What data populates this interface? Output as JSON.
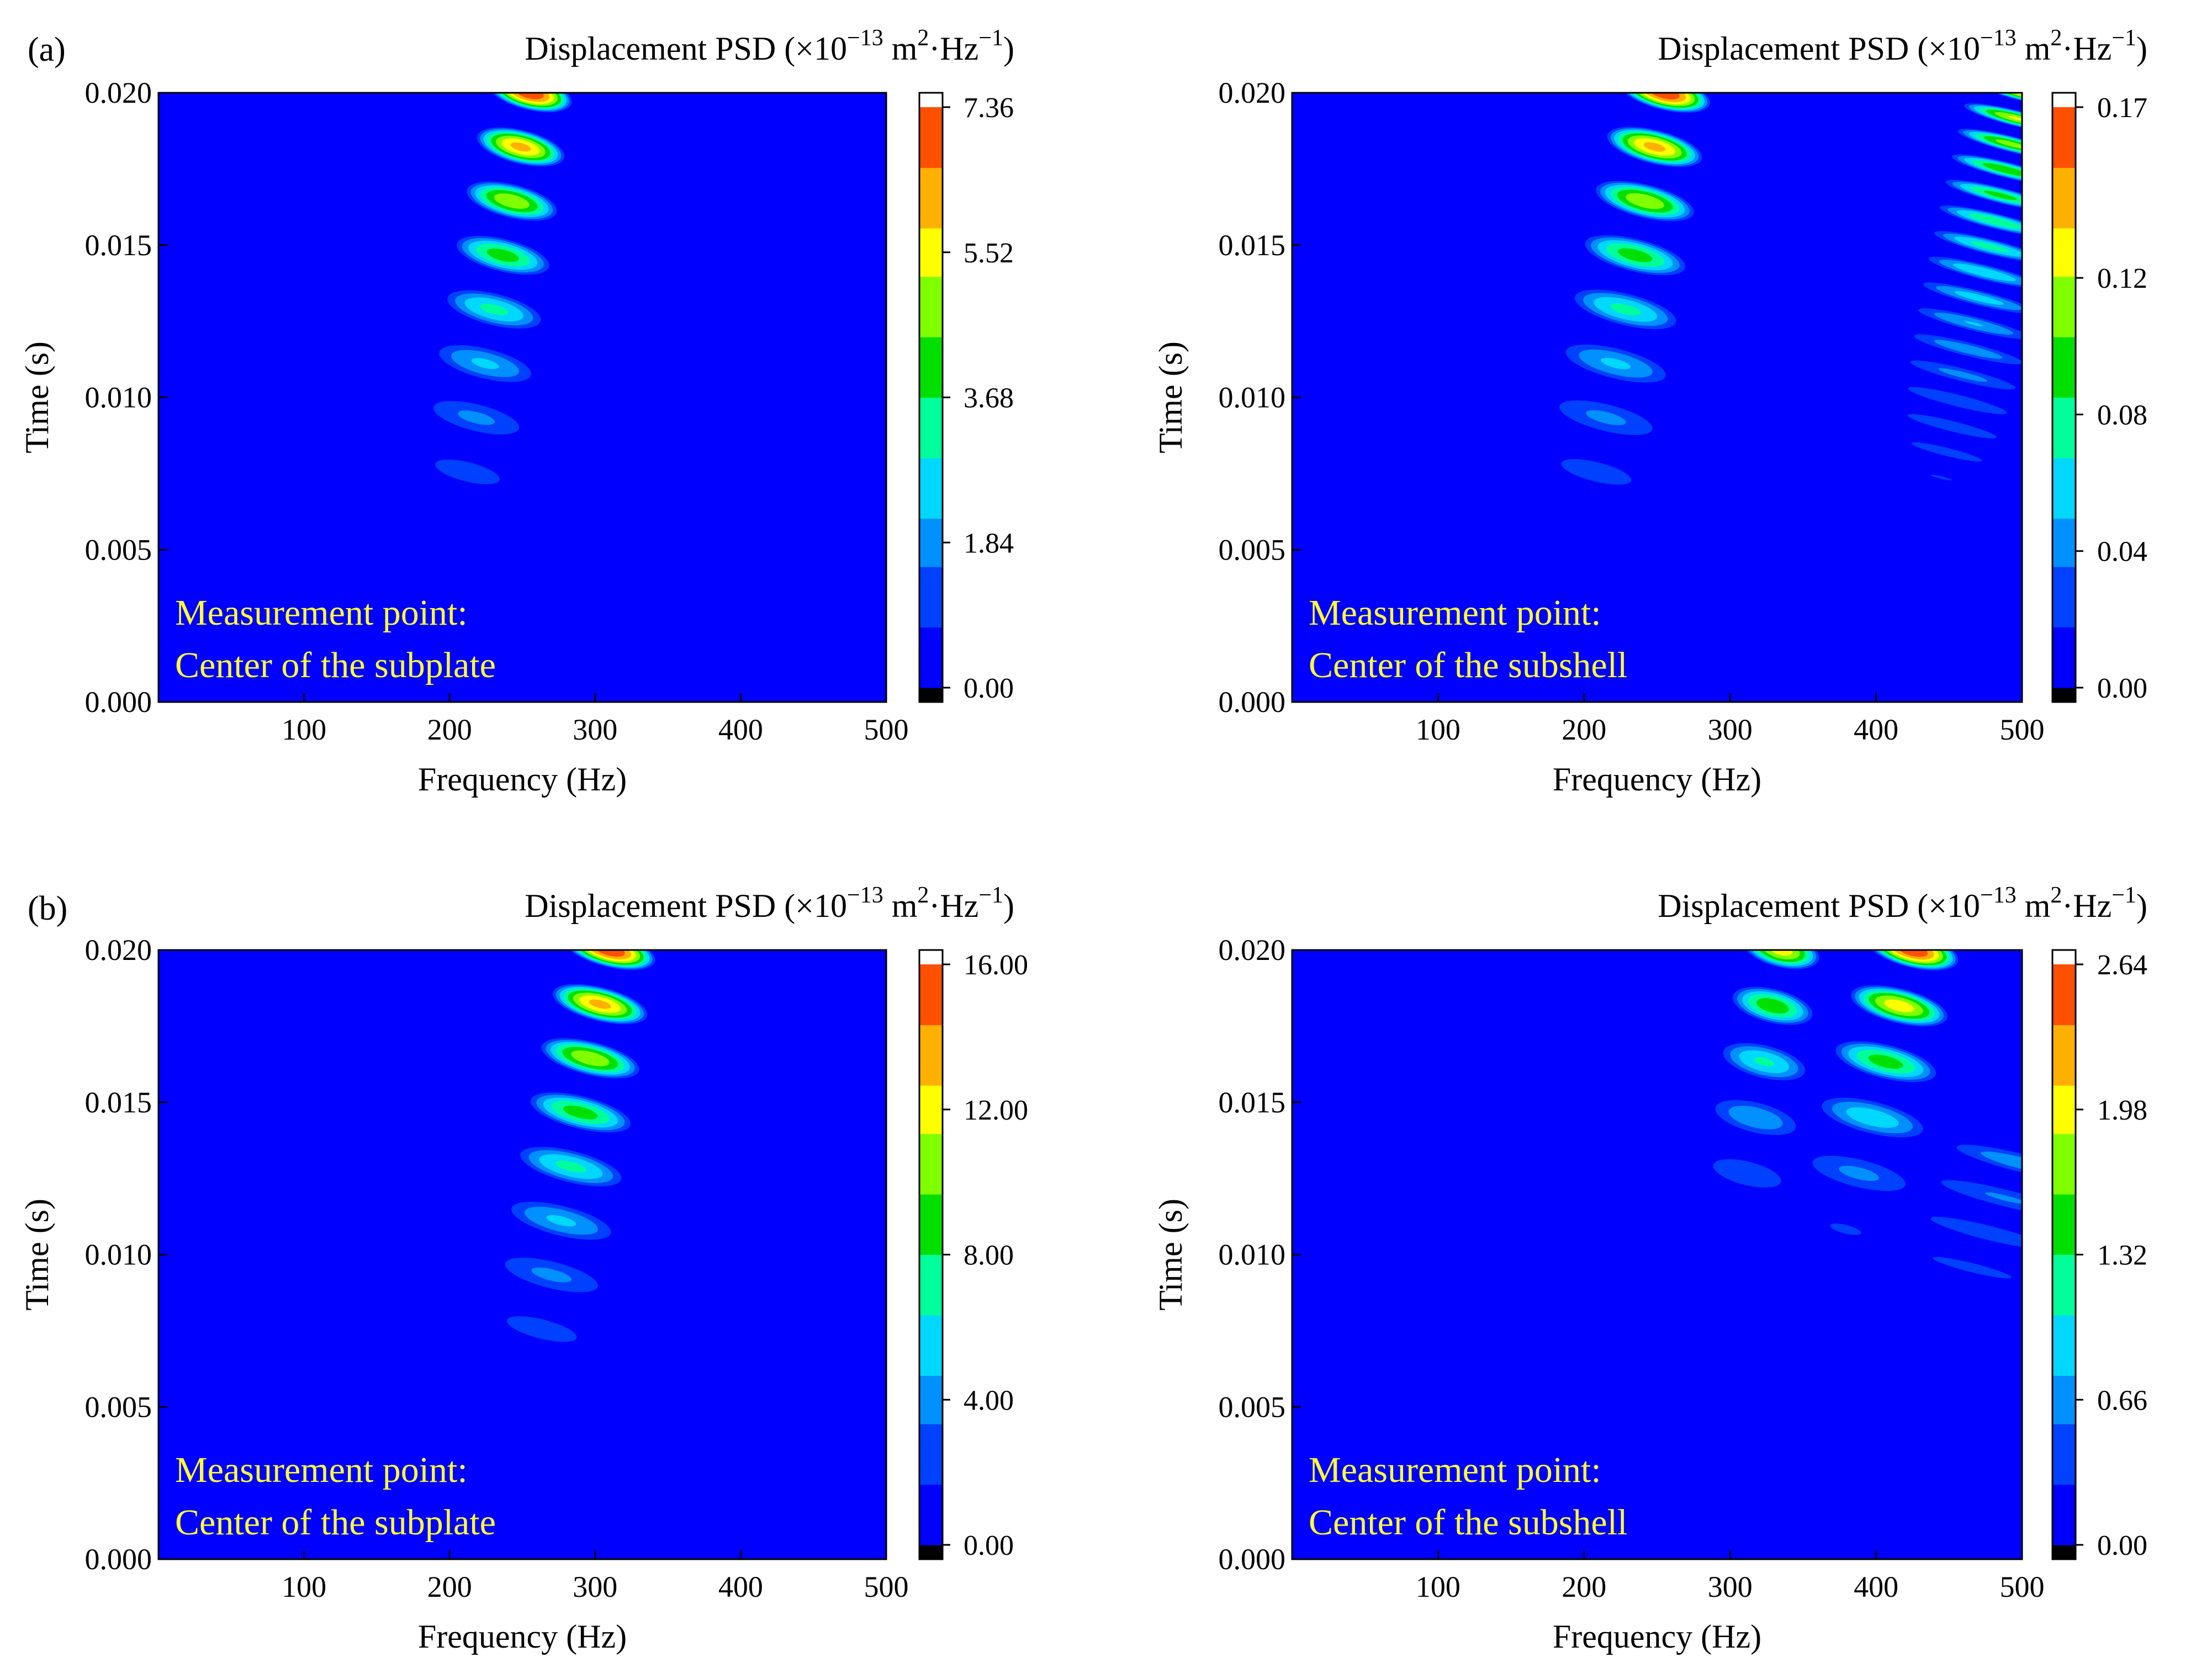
{
  "figure": {
    "panel_labels": [
      "(a)",
      "(b)"
    ],
    "colormap": [
      "#000080",
      "#0000ff",
      "#0040ff",
      "#0090ff",
      "#00d8ff",
      "#00ff9a",
      "#00e000",
      "#80ff00",
      "#ffff00",
      "#ffb000",
      "#ff5000",
      "#ff0000"
    ],
    "background_field_color": "#0000ff"
  },
  "chart_data": [
    {
      "type": "heatmap",
      "panel": "(a)",
      "title": "Displacement PSD",
      "colorbar_unit": "(×10",
      "colorbar_exp": "−13",
      "colorbar_unit2": " m",
      "colorbar_unit3": "·Hz",
      "colorbar_exp2": "−1",
      "colorbar_close": ")",
      "xlabel": "Frequency (Hz)",
      "ylabel": "Time (s)",
      "xlim": [
        0,
        500
      ],
      "ylim": [
        0,
        0.02
      ],
      "x_ticks": [
        "100",
        "200",
        "300",
        "400",
        "500"
      ],
      "y_ticks": [
        "0.000",
        "0.005",
        "0.010",
        "0.015",
        "0.020"
      ],
      "colorbar_ticks": [
        "0.00",
        "1.84",
        "3.68",
        "5.52",
        "7.36"
      ],
      "colorbar_range": [
        0,
        7.36
      ],
      "annotation_line1": "Measurement point:",
      "annotation_line2": "Center of the subplate",
      "ridges": [
        {
          "f0": 200,
          "f1": 255,
          "t0": 0.004,
          "t1": 0.02,
          "fringes": 10,
          "sigma_f": 24,
          "peak": 7.36
        }
      ]
    },
    {
      "type": "heatmap",
      "panel": "(a)",
      "title": "Displacement PSD",
      "colorbar_unit": "(×10",
      "colorbar_exp": "−13",
      "colorbar_unit2": " m",
      "colorbar_unit3": "·Hz",
      "colorbar_exp2": "−1",
      "colorbar_close": ")",
      "xlabel": "Frequency (Hz)",
      "ylabel": "Time (s)",
      "xlim": [
        0,
        500
      ],
      "ylim": [
        0,
        0.02
      ],
      "x_ticks": [
        "100",
        "200",
        "300",
        "400",
        "500"
      ],
      "y_ticks": [
        "0.000",
        "0.005",
        "0.010",
        "0.015",
        "0.020"
      ],
      "colorbar_ticks": [
        "0.00",
        "0.04",
        "0.08",
        "0.12",
        "0.17"
      ],
      "colorbar_range": [
        0,
        0.17
      ],
      "annotation_line1": "Measurement point:",
      "annotation_line2": "Center of the subshell",
      "ridges": [
        {
          "f0": 195,
          "f1": 255,
          "t0": 0.004,
          "t1": 0.02,
          "fringes": 10,
          "sigma_f": 26,
          "peak": 0.17
        },
        {
          "f0": 430,
          "f1": 500,
          "t0": 0.004,
          "t1": 0.02,
          "fringes": 20,
          "sigma_f": 30,
          "peak": 0.13
        }
      ]
    },
    {
      "type": "heatmap",
      "panel": "(b)",
      "title": "Displacement PSD",
      "colorbar_unit": "(×10",
      "colorbar_exp": "−13",
      "colorbar_unit2": " m",
      "colorbar_unit3": "·Hz",
      "colorbar_exp2": "−1",
      "colorbar_close": ")",
      "xlabel": "Frequency (Hz)",
      "ylabel": "Time (s)",
      "xlim": [
        0,
        500
      ],
      "ylim": [
        0,
        0.02
      ],
      "x_ticks": [
        "100",
        "200",
        "300",
        "400",
        "500"
      ],
      "y_ticks": [
        "0.000",
        "0.005",
        "0.010",
        "0.015",
        "0.020"
      ],
      "colorbar_ticks": [
        "0.00",
        "4.00",
        "8.00",
        "12.00",
        "16.00"
      ],
      "colorbar_range": [
        0,
        16
      ],
      "annotation_line1": "Measurement point:",
      "annotation_line2": "Center of the subplate",
      "ridges": [
        {
          "f0": 250,
          "f1": 310,
          "t0": 0.004,
          "t1": 0.02,
          "fringes": 10,
          "sigma_f": 26,
          "peak": 16
        }
      ]
    },
    {
      "type": "heatmap",
      "panel": "(b)",
      "title": "Displacement PSD",
      "colorbar_unit": "(×10",
      "colorbar_exp": "−13",
      "colorbar_unit2": " m",
      "colorbar_unit3": "·Hz",
      "colorbar_exp2": "−1",
      "colorbar_close": ")",
      "xlabel": "Frequency (Hz)",
      "ylabel": "Time (s)",
      "xlim": [
        0,
        500
      ],
      "ylim": [
        0,
        0.02
      ],
      "x_ticks": [
        "100",
        "200",
        "300",
        "400",
        "500"
      ],
      "y_ticks": [
        "0.000",
        "0.005",
        "0.010",
        "0.015",
        "0.020"
      ],
      "colorbar_ticks": [
        "0.00",
        "0.66",
        "1.32",
        "1.98",
        "2.64"
      ],
      "colorbar_range": [
        0,
        2.64
      ],
      "annotation_line1": "Measurement point:",
      "annotation_line2": "Center of the subshell",
      "ridges": [
        {
          "f0": 300,
          "f1": 335,
          "t0": 0.009,
          "t1": 0.02,
          "fringes": 7,
          "sigma_f": 22,
          "peak": 2.0
        },
        {
          "f0": 370,
          "f1": 425,
          "t0": 0.009,
          "t1": 0.02,
          "fringes": 7,
          "sigma_f": 26,
          "peak": 2.64
        },
        {
          "f0": 420,
          "f1": 500,
          "t0": 0.005,
          "t1": 0.013,
          "fringes": 8,
          "sigma_f": 45,
          "peak": 0.7
        }
      ]
    }
  ]
}
